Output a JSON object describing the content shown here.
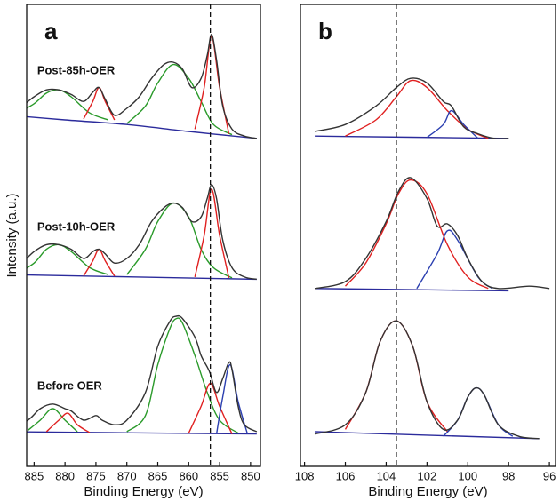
{
  "chart_data": [
    {
      "type": "line",
      "panel_label": "a",
      "xlabel": "Binding Energy (eV)",
      "ylabel": "Intensity (a.u.)",
      "xlim": [
        886.2,
        848.4
      ],
      "xticks": [
        885,
        880,
        875,
        870,
        865,
        860,
        855,
        850
      ],
      "ylim": [
        0,
        100
      ],
      "vline": 856.5,
      "annotations": [
        {
          "text": "Post-85h-OER",
          "x": 884.5,
          "y": 85.6
        },
        {
          "text": "Post-10h-OER",
          "x": 884.5,
          "y": 51.7
        },
        {
          "text": "Before OER",
          "x": 884.5,
          "y": 17.3
        }
      ],
      "series": [
        {
          "color": "#2b2b9c",
          "x": [
            889,
            849
          ],
          "values": [
            7.5,
            7
          ]
        },
        {
          "color": "#2a9a2a",
          "x": [
            886,
            884,
            882,
            880,
            878
          ],
          "values": [
            7.8,
            10,
            12.5,
            10,
            7.5
          ]
        },
        {
          "color": "#e02020",
          "x": [
            883,
            881,
            879.5,
            878,
            876
          ],
          "values": [
            7.5,
            10,
            11.5,
            9,
            7.3
          ]
        },
        {
          "color": "#2a9a2a",
          "x": [
            870,
            867,
            865,
            863,
            862,
            861,
            859,
            857,
            855,
            852
          ],
          "values": [
            7.5,
            11,
            22,
            30,
            32,
            31,
            24,
            16,
            10,
            7.2
          ]
        },
        {
          "color": "#e02020",
          "x": [
            860,
            858,
            856.5,
            855,
            853
          ],
          "values": [
            7.2,
            13,
            18,
            13,
            7
          ]
        },
        {
          "color": "#2b3fb0",
          "x": [
            855.5,
            854.5,
            853.3,
            852,
            850.5
          ],
          "values": [
            7,
            15,
            22,
            14,
            7
          ]
        },
        {
          "color": "#333333",
          "x": [
            889,
            886,
            884,
            882,
            880,
            879,
            877,
            875,
            874,
            872,
            870,
            867,
            865,
            863,
            862,
            861,
            859,
            858,
            857,
            856.5,
            855.5,
            854.5,
            853.5,
            853,
            852,
            851,
            849
          ],
          "values": [
            8,
            10,
            12.5,
            13.5,
            12.5,
            12,
            10,
            11,
            10,
            9,
            10,
            16,
            26,
            31.5,
            32.5,
            32,
            28,
            24,
            21.5,
            20,
            16,
            19,
            22.5,
            21,
            13,
            9,
            7.5
          ]
        },
        {
          "color": "#2b2b9c",
          "x": [
            889,
            849
          ],
          "values": [
            41.5,
            40.5
          ]
        },
        {
          "color": "#2a9a2a",
          "x": [
            888,
            885,
            883,
            881,
            879,
            876,
            873
          ],
          "values": [
            41.5,
            44,
            47,
            48,
            46.5,
            43,
            41.5
          ]
        },
        {
          "color": "#e02020",
          "x": [
            877,
            875.5,
            874.5,
            873.5,
            872
          ],
          "values": [
            41.2,
            44.5,
            47,
            44.5,
            41.2
          ]
        },
        {
          "color": "#2a9a2a",
          "x": [
            870,
            867,
            865,
            862.5,
            860,
            858,
            856,
            853
          ],
          "values": [
            41.5,
            47,
            53,
            57,
            54,
            47,
            43,
            40.8
          ]
        },
        {
          "color": "#e02020",
          "x": [
            859,
            857.5,
            856.3,
            855,
            853.5
          ],
          "values": [
            41,
            50,
            60,
            50,
            40.8
          ]
        },
        {
          "color": "#333333",
          "x": [
            889,
            887,
            885,
            883,
            881,
            879,
            877,
            875.5,
            874.5,
            873.5,
            872,
            870,
            868,
            866,
            864,
            862.5,
            861,
            859.5,
            858,
            857,
            856.3,
            855.5,
            854.5,
            853,
            851,
            849
          ],
          "values": [
            42,
            44,
            46.5,
            48,
            48,
            47,
            45,
            46.5,
            47,
            46,
            44,
            45,
            48,
            53,
            56,
            57,
            56,
            53,
            54,
            58,
            61,
            58,
            49,
            43,
            41,
            40.5
          ]
        },
        {
          "color": "#2b2b9c",
          "x": [
            889,
            880,
            870,
            860,
            849
          ],
          "values": [
            76,
            75,
            74,
            72.5,
            71
          ]
        },
        {
          "color": "#2a9a2a",
          "x": [
            888,
            885,
            883,
            881,
            879,
            876,
            873
          ],
          "values": [
            76.2,
            78.5,
            80.8,
            81.5,
            80,
            76.5,
            75
          ]
        },
        {
          "color": "#e02020",
          "x": [
            877,
            875.5,
            874.5,
            873.5,
            872
          ],
          "values": [
            75.2,
            79,
            82,
            79,
            75
          ]
        },
        {
          "color": "#2a9a2a",
          "x": [
            870,
            867,
            865,
            862.5,
            860,
            858,
            856,
            853
          ],
          "values": [
            74.2,
            78,
            83,
            87,
            84,
            79,
            74,
            71.8
          ]
        },
        {
          "color": "#e02020",
          "x": [
            859,
            857.5,
            856.3,
            855,
            853.5
          ],
          "values": [
            73,
            82,
            93,
            82,
            72
          ]
        },
        {
          "color": "#333333",
          "x": [
            889,
            887,
            885,
            883,
            881,
            879,
            877,
            875.5,
            874.5,
            873.5,
            872,
            870,
            868,
            866,
            864,
            862.5,
            861,
            859.5,
            858,
            857,
            856.3,
            855.5,
            854.5,
            853,
            851,
            849
          ],
          "values": [
            77,
            78,
            80,
            81.5,
            81.5,
            80.5,
            79,
            81,
            82,
            79.5,
            76,
            77.5,
            80,
            84,
            87,
            87.5,
            86,
            82,
            84,
            89,
            93.5,
            88,
            78,
            73,
            71.5,
            71
          ]
        }
      ]
    },
    {
      "type": "line",
      "panel_label": "b",
      "xlabel": "Binding Energy (eV)",
      "xlim": [
        108.2,
        95.7
      ],
      "xticks": [
        108,
        106,
        104,
        102,
        100,
        98,
        96
      ],
      "ylim": [
        0,
        100
      ],
      "vline": 103.5,
      "series": [
        {
          "color": "#2b2b9c",
          "x": [
            107.5,
            98
          ],
          "values": [
            71.5,
            71
          ]
        },
        {
          "color": "#e02020",
          "x": [
            106,
            104.5,
            103.5,
            102.8,
            102,
            101,
            100,
            99
          ],
          "values": [
            71.5,
            75,
            80,
            83.5,
            82,
            77,
            73,
            71
          ]
        },
        {
          "color": "#2b3fb0",
          "x": [
            102,
            101.2,
            100.8,
            100.2,
            99.5
          ],
          "values": [
            71.2,
            74,
            77,
            74,
            71
          ]
        },
        {
          "color": "#333333",
          "x": [
            107.5,
            106,
            104.5,
            103.5,
            102.8,
            102,
            101.2,
            100.8,
            100.2,
            99.5,
            98.7,
            98
          ],
          "values": [
            72.5,
            74,
            78,
            82,
            84,
            83,
            79,
            78,
            73.5,
            72,
            71,
            71
          ]
        },
        {
          "color": "#2b2b9c",
          "x": [
            107.5,
            98
          ],
          "values": [
            38.5,
            38
          ]
        },
        {
          "color": "#e02020",
          "x": [
            106,
            105,
            104,
            103.4,
            102.8,
            102,
            101,
            100,
            99
          ],
          "values": [
            39,
            44,
            52.5,
            59,
            62,
            59,
            48,
            41,
            38.5
          ]
        },
        {
          "color": "#2b3fb0",
          "x": [
            102.5,
            101.5,
            101,
            100.5,
            99.5,
            98.8
          ],
          "values": [
            38.5,
            46,
            51,
            49,
            41,
            38.5
          ]
        },
        {
          "color": "#333333",
          "x": [
            107.5,
            106,
            105,
            104,
            103.4,
            102.8,
            102,
            101.5,
            101,
            100.5,
            100,
            99.3,
            98.5,
            97,
            96
          ],
          "values": [
            38.5,
            40,
            45,
            53,
            59.5,
            62.5,
            58,
            52,
            52.5,
            50,
            45,
            40,
            38.5,
            39,
            38.5
          ]
        },
        {
          "color": "#2b2b9c",
          "x": [
            107.5,
            96.5
          ],
          "values": [
            7.5,
            6
          ]
        },
        {
          "color": "#e02020",
          "x": [
            106,
            105,
            104.3,
            103.5,
            102.7,
            102,
            101
          ],
          "values": [
            8,
            16,
            27,
            31.5,
            26,
            14,
            7.5
          ]
        },
        {
          "color": "#2b3fb0",
          "x": [
            101.2,
            100.5,
            100,
            99.6,
            99.2,
            98.5,
            97.8
          ],
          "values": [
            6.5,
            10,
            15,
            17,
            15.5,
            9,
            6.5
          ]
        },
        {
          "color": "#333333",
          "x": [
            107.5,
            106,
            105,
            104.3,
            103.5,
            102.7,
            102,
            101.2,
            100.5,
            100,
            99.6,
            99.2,
            98.5,
            97.5,
            96.5
          ],
          "values": [
            7,
            9,
            16,
            27,
            31.5,
            26,
            14,
            8,
            10,
            15,
            17,
            15.5,
            9,
            6.5,
            6
          ]
        }
      ]
    }
  ]
}
